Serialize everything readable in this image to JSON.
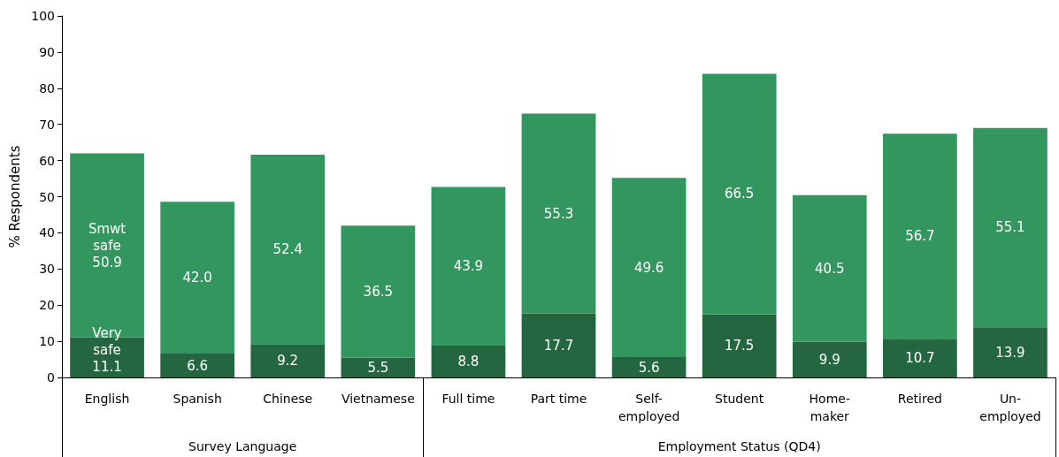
{
  "chart_data": {
    "type": "bar",
    "stacked": true,
    "ylabel": "% Respondents",
    "categories": [
      "English",
      "Spanish",
      "Chinese",
      "Vietnamese",
      "Full time",
      "Part time",
      "Self-\nemployed",
      "Student",
      "Home-\nmaker",
      "Retired",
      "Un-\nemployed"
    ],
    "series": [
      {
        "name": "Very\nsafe",
        "color": "#236640",
        "values": [
          11.1,
          6.6,
          9.2,
          5.5,
          8.8,
          17.7,
          5.6,
          17.5,
          9.9,
          10.7,
          13.9
        ],
        "value_labels": [
          "11.1",
          "6.6",
          "9.2",
          "5.5",
          "8.8",
          "17.7",
          "5.6",
          "17.5",
          "9.9",
          "10.7",
          "13.9"
        ]
      },
      {
        "name": "Smwt\nsafe",
        "color": "#33965f",
        "values": [
          50.9,
          42.0,
          52.4,
          36.5,
          43.9,
          55.3,
          49.6,
          66.5,
          40.5,
          56.7,
          55.1
        ],
        "value_labels": [
          "50.9",
          "42.0",
          "52.4",
          "36.5",
          "43.9",
          "55.3",
          "49.6",
          "66.5",
          "40.5",
          "56.7",
          "55.1"
        ]
      }
    ],
    "ylim": [
      0,
      100
    ],
    "yticks": [
      0,
      10,
      20,
      30,
      40,
      50,
      60,
      70,
      80,
      90,
      100
    ],
    "grid": false,
    "legend": false,
    "annotations": [
      "Survey Language",
      "Employment Status (QD4)"
    ]
  }
}
